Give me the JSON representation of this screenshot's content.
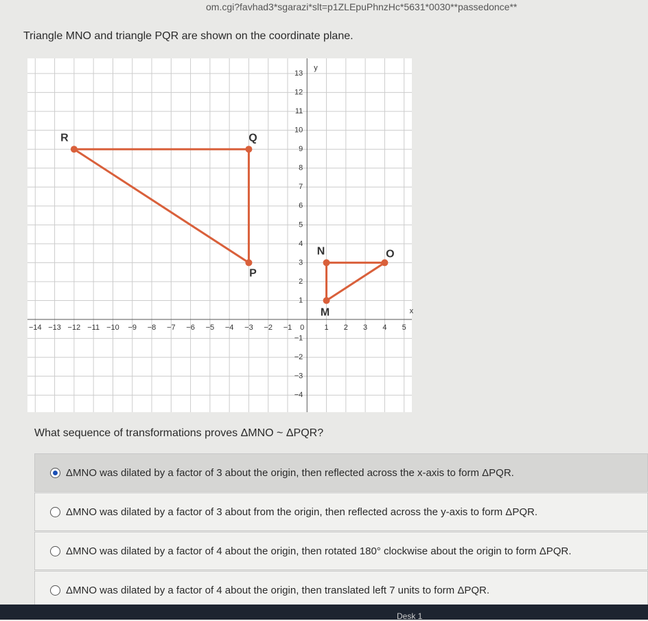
{
  "browser": {
    "url": "om.cgi?favhad3*sgarazi*slt=p1ZLEpuPhnzHc*5631*0030**passedonce**"
  },
  "question": "Triangle MNO and triangle PQR are shown on the coordinate plane.",
  "graph": {
    "xlim": [
      -14.4,
      5.4
    ],
    "ylim": [
      -4.9,
      13.8
    ],
    "xticks": [
      {
        "value": -14,
        "label": "−14"
      },
      {
        "value": -13,
        "label": "−13"
      },
      {
        "value": -12,
        "label": "−12"
      },
      {
        "value": -11,
        "label": "−11"
      },
      {
        "value": -10,
        "label": "−10"
      },
      {
        "value": -9,
        "label": "−9"
      },
      {
        "value": -8,
        "label": "−8"
      },
      {
        "value": -7,
        "label": "−7"
      },
      {
        "value": -6,
        "label": "−6"
      },
      {
        "value": -5,
        "label": "−5"
      },
      {
        "value": -4,
        "label": "−4"
      },
      {
        "value": -3,
        "label": "−3"
      },
      {
        "value": -2,
        "label": "−2"
      },
      {
        "value": -1,
        "label": "−1"
      },
      1,
      2,
      3,
      4,
      5
    ],
    "yticks": [
      {
        "value": -4,
        "label": "−4"
      },
      {
        "value": -3,
        "label": "−3"
      },
      {
        "value": -2,
        "label": "−2"
      },
      {
        "value": -1,
        "label": "−1"
      },
      1,
      2,
      3,
      4,
      5,
      6,
      7,
      8,
      9,
      10,
      11,
      12,
      13
    ],
    "origin_label": "0",
    "x_label": "x",
    "y_label": "y",
    "color": "#d9603b",
    "triangles": [
      {
        "points": [
          {
            "label": "P",
            "x": -3,
            "y": 3
          },
          {
            "label": "Q",
            "x": -3,
            "y": 9
          },
          {
            "label": "R",
            "x": -12,
            "y": 9
          }
        ]
      },
      {
        "points": [
          {
            "label": "M",
            "x": 1,
            "y": 1
          },
          {
            "label": "N",
            "x": 1,
            "y": 3
          },
          {
            "label": "O",
            "x": 4,
            "y": 3
          }
        ]
      }
    ]
  },
  "prompt": "What sequence of transformations proves ΔMNO ~ ΔPQR?",
  "options": [
    {
      "text": "ΔMNO was dilated by a factor of 3 about the origin, then reflected across the x-axis to form ΔPQR.",
      "selected": true
    },
    {
      "text": "ΔMNO was dilated by a factor of 3 about from the origin, then reflected across the y-axis to form ΔPQR.",
      "selected": false
    },
    {
      "text": "ΔMNO was dilated by a factor of 4 about the origin, then rotated 180° clockwise about the origin to form ΔPQR.",
      "selected": false
    },
    {
      "text": "ΔMNO was dilated by a factor of 4 about the origin, then translated left 7 units to form ΔPQR.",
      "selected": false
    }
  ],
  "taskbar": {
    "label": "Desk 1"
  }
}
